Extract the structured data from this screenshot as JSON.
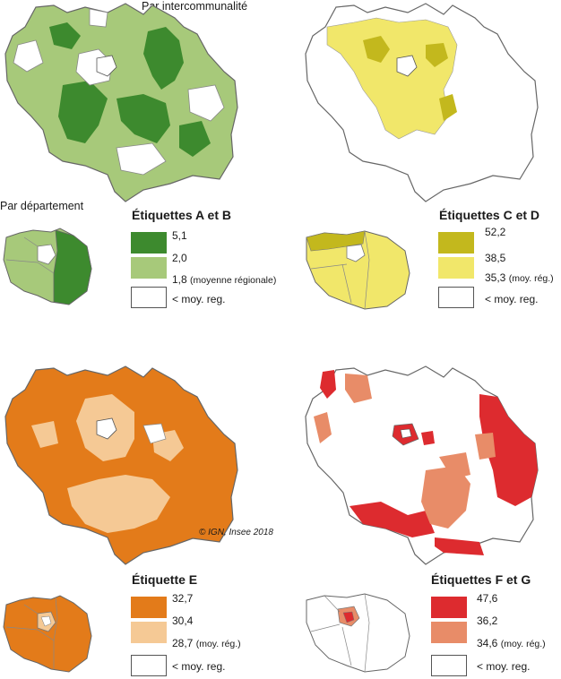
{
  "top_label": "Par intercommunalité",
  "dept_label": "Par département",
  "credit": "© IGN, Insee 2018",
  "panels": [
    {
      "title": "Étiquettes A et B",
      "legend": [
        {
          "value": "5,1",
          "note": "",
          "color": "#3d8a2e"
        },
        {
          "value": "2,0",
          "note": "",
          "color": "#a7c97a"
        },
        {
          "value": "1,8",
          "note": "(moyenne régionale)",
          "color": "#a7c97a"
        },
        {
          "value": "< moy. reg.",
          "note": "",
          "color": "#ffffff"
        }
      ]
    },
    {
      "title": "Étiquettes C et D",
      "legend": [
        {
          "value": "52,2",
          "note": "",
          "color": "#c3b81d"
        },
        {
          "value": "38,5",
          "note": "",
          "color": "#f1e76a"
        },
        {
          "value": "35,3",
          "note": "(moy. rég.)",
          "color": "#f1e76a"
        },
        {
          "value": "< moy. reg.",
          "note": "",
          "color": "#ffffff"
        }
      ]
    },
    {
      "title": "Étiquette E",
      "legend": [
        {
          "value": "32,7",
          "note": "",
          "color": "#e37b1a"
        },
        {
          "value": "30,4",
          "note": "",
          "color": "#f5c995"
        },
        {
          "value": "28,7",
          "note": "(moy. rég.)",
          "color": "#f5c995"
        },
        {
          "value": "< moy. reg.",
          "note": "",
          "color": "#ffffff"
        }
      ]
    },
    {
      "title": "Étiquettes F et G",
      "legend": [
        {
          "value": "47,6",
          "note": "",
          "color": "#dd2b2f"
        },
        {
          "value": "36,2",
          "note": "",
          "color": "#e88c68"
        },
        {
          "value": "34,6",
          "note": "(moy. rég.)",
          "color": "#e88c68"
        },
        {
          "value": "< moy. reg.",
          "note": "",
          "color": "#ffffff"
        }
      ]
    }
  ],
  "colors": {
    "outline": "#777777",
    "inner_border": "#888888"
  }
}
